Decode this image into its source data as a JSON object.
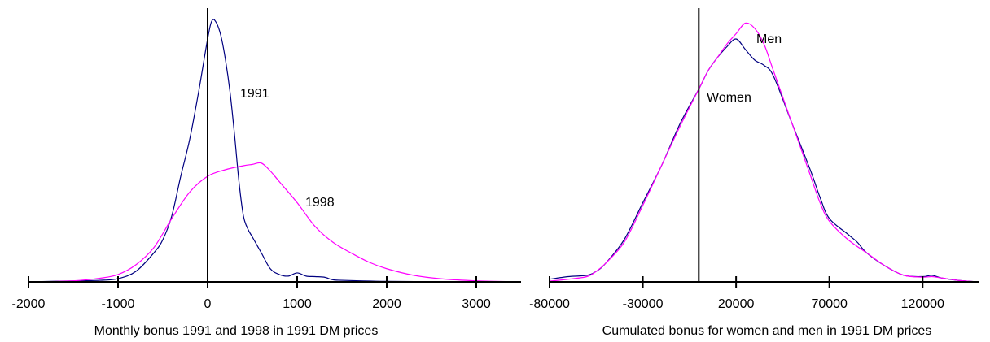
{
  "chart_data": [
    {
      "type": "line",
      "xlabel": "Monthly bonus 1991 and 1998 in 1991 DM prices",
      "ylabel": "",
      "xlim": [
        -2000,
        3500
      ],
      "ylim": [
        0,
        1
      ],
      "x_ticks": [
        -2000,
        -1000,
        0,
        1000,
        2000,
        3000
      ],
      "tick_labels": [
        "-2000",
        "-1000",
        "0",
        "1000",
        "2000",
        "3000"
      ],
      "reference_line_x": 0,
      "grid": false,
      "legend": "none",
      "series": [
        {
          "name": "1991",
          "color": "#000080",
          "x": [
            -2000,
            -1600,
            -1200,
            -1000,
            -800,
            -600,
            -500,
            -400,
            -300,
            -200,
            -100,
            0,
            50,
            100,
            150,
            200,
            250,
            300,
            350,
            400,
            450,
            500,
            600,
            700,
            800,
            900,
            1000,
            1100,
            1200,
            1300,
            1400,
            1500,
            1700,
            2000,
            2500,
            3000,
            3500
          ],
          "y": [
            0,
            0.003,
            0.006,
            0.012,
            0.04,
            0.11,
            0.16,
            0.25,
            0.4,
            0.54,
            0.72,
            0.92,
            0.99,
            0.98,
            0.93,
            0.84,
            0.72,
            0.56,
            0.38,
            0.25,
            0.2,
            0.17,
            0.11,
            0.05,
            0.028,
            0.022,
            0.034,
            0.022,
            0.02,
            0.018,
            0.008,
            0.006,
            0.004,
            0.002,
            0.001,
            0.0005,
            0
          ]
        },
        {
          "name": "1998",
          "color": "#ff00ff",
          "x": [
            -2000,
            -1500,
            -1200,
            -1000,
            -800,
            -600,
            -400,
            -200,
            0,
            200,
            400,
            500,
            600,
            700,
            800,
            1000,
            1200,
            1400,
            1600,
            1800,
            2000,
            2300,
            2600,
            3000,
            3500
          ],
          "y": [
            0,
            0.004,
            0.014,
            0.028,
            0.065,
            0.13,
            0.24,
            0.34,
            0.4,
            0.425,
            0.44,
            0.445,
            0.45,
            0.42,
            0.38,
            0.3,
            0.21,
            0.15,
            0.11,
            0.075,
            0.05,
            0.025,
            0.012,
            0.004,
            0
          ]
        }
      ]
    },
    {
      "type": "line",
      "xlabel": "Cumulated bonus for women and men in 1991 DM prices",
      "ylabel": "",
      "xlim": [
        -80000,
        150000
      ],
      "ylim": [
        0,
        1
      ],
      "x_ticks": [
        -80000,
        -30000,
        20000,
        70000,
        120000
      ],
      "tick_labels": [
        "-80000",
        "-30000",
        "20000",
        "70000",
        "120000"
      ],
      "reference_line_x": 0,
      "grid": false,
      "legend": "none",
      "series": [
        {
          "name": "Women",
          "color": "#000080",
          "x": [
            -80000,
            -70000,
            -60000,
            -55000,
            -50000,
            -40000,
            -30000,
            -20000,
            -10000,
            0,
            5000,
            10000,
            15000,
            20000,
            25000,
            30000,
            35000,
            40000,
            50000,
            60000,
            65000,
            70000,
            80000,
            85000,
            90000,
            100000,
            110000,
            120000,
            125000,
            130000,
            140000,
            150000
          ],
          "y": [
            0.01,
            0.02,
            0.025,
            0.04,
            0.07,
            0.16,
            0.3,
            0.44,
            0.6,
            0.73,
            0.8,
            0.85,
            0.89,
            0.92,
            0.88,
            0.84,
            0.82,
            0.78,
            0.6,
            0.42,
            0.32,
            0.24,
            0.18,
            0.15,
            0.11,
            0.06,
            0.025,
            0.02,
            0.025,
            0.015,
            0.005,
            0
          ]
        },
        {
          "name": "Men",
          "color": "#ff00ff",
          "x": [
            -80000,
            -70000,
            -60000,
            -55000,
            -50000,
            -40000,
            -30000,
            -20000,
            -10000,
            0,
            5000,
            10000,
            15000,
            20000,
            25000,
            30000,
            35000,
            40000,
            50000,
            60000,
            65000,
            70000,
            80000,
            90000,
            100000,
            110000,
            120000,
            125000,
            130000,
            140000,
            150000
          ],
          "y": [
            0.003,
            0.01,
            0.02,
            0.04,
            0.07,
            0.15,
            0.29,
            0.44,
            0.59,
            0.73,
            0.8,
            0.85,
            0.9,
            0.94,
            0.98,
            0.96,
            0.9,
            0.8,
            0.6,
            0.4,
            0.3,
            0.23,
            0.16,
            0.11,
            0.06,
            0.025,
            0.018,
            0.02,
            0.015,
            0.005,
            0
          ]
        }
      ]
    }
  ]
}
